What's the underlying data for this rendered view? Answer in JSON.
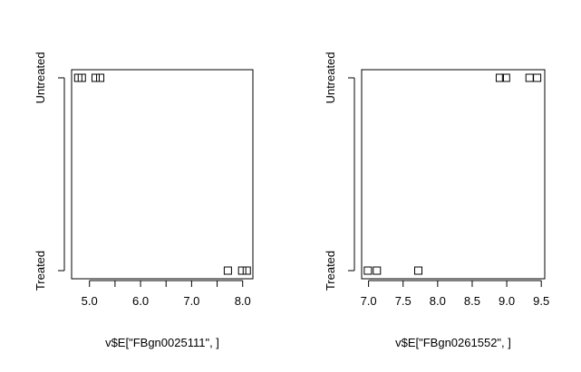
{
  "chart_data": [
    {
      "type": "scatter",
      "title": "",
      "xlabel": "v$E[\"FBgn0025111\", ]",
      "ylabel": "",
      "xlim": [
        4.65,
        8.2
      ],
      "xticks": [
        5.0,
        6.0,
        7.0,
        8.0
      ],
      "xtick_labels": [
        "5.0",
        "6.0",
        "7.0",
        "8.0"
      ],
      "minor_xticks": [
        5.5,
        6.5,
        7.5
      ],
      "categories": [
        "Treated",
        "Untreated"
      ],
      "grid": false,
      "marker": "open-square",
      "points": [
        {
          "x": 4.78,
          "y": "Untreated"
        },
        {
          "x": 4.85,
          "y": "Untreated"
        },
        {
          "x": 5.12,
          "y": "Untreated"
        },
        {
          "x": 5.21,
          "y": "Untreated"
        },
        {
          "x": 7.71,
          "y": "Treated"
        },
        {
          "x": 7.99,
          "y": "Treated"
        },
        {
          "x": 8.08,
          "y": "Treated"
        }
      ]
    },
    {
      "type": "scatter",
      "title": "",
      "xlabel": "v$E[\"FBgn0261552\", ]",
      "ylabel": "",
      "xlim": [
        6.9,
        9.55
      ],
      "xticks": [
        7.0,
        7.5,
        8.0,
        8.5,
        9.0,
        9.5
      ],
      "xtick_labels": [
        "7.0",
        "7.5",
        "8.0",
        "8.5",
        "9.0",
        "9.5"
      ],
      "minor_xticks": [],
      "categories": [
        "Treated",
        "Untreated"
      ],
      "grid": false,
      "marker": "open-square",
      "points": [
        {
          "x": 6.99,
          "y": "Treated"
        },
        {
          "x": 7.12,
          "y": "Treated"
        },
        {
          "x": 7.72,
          "y": "Treated"
        },
        {
          "x": 8.9,
          "y": "Untreated"
        },
        {
          "x": 8.99,
          "y": "Untreated"
        },
        {
          "x": 9.33,
          "y": "Untreated"
        },
        {
          "x": 9.44,
          "y": "Untreated"
        }
      ]
    }
  ]
}
